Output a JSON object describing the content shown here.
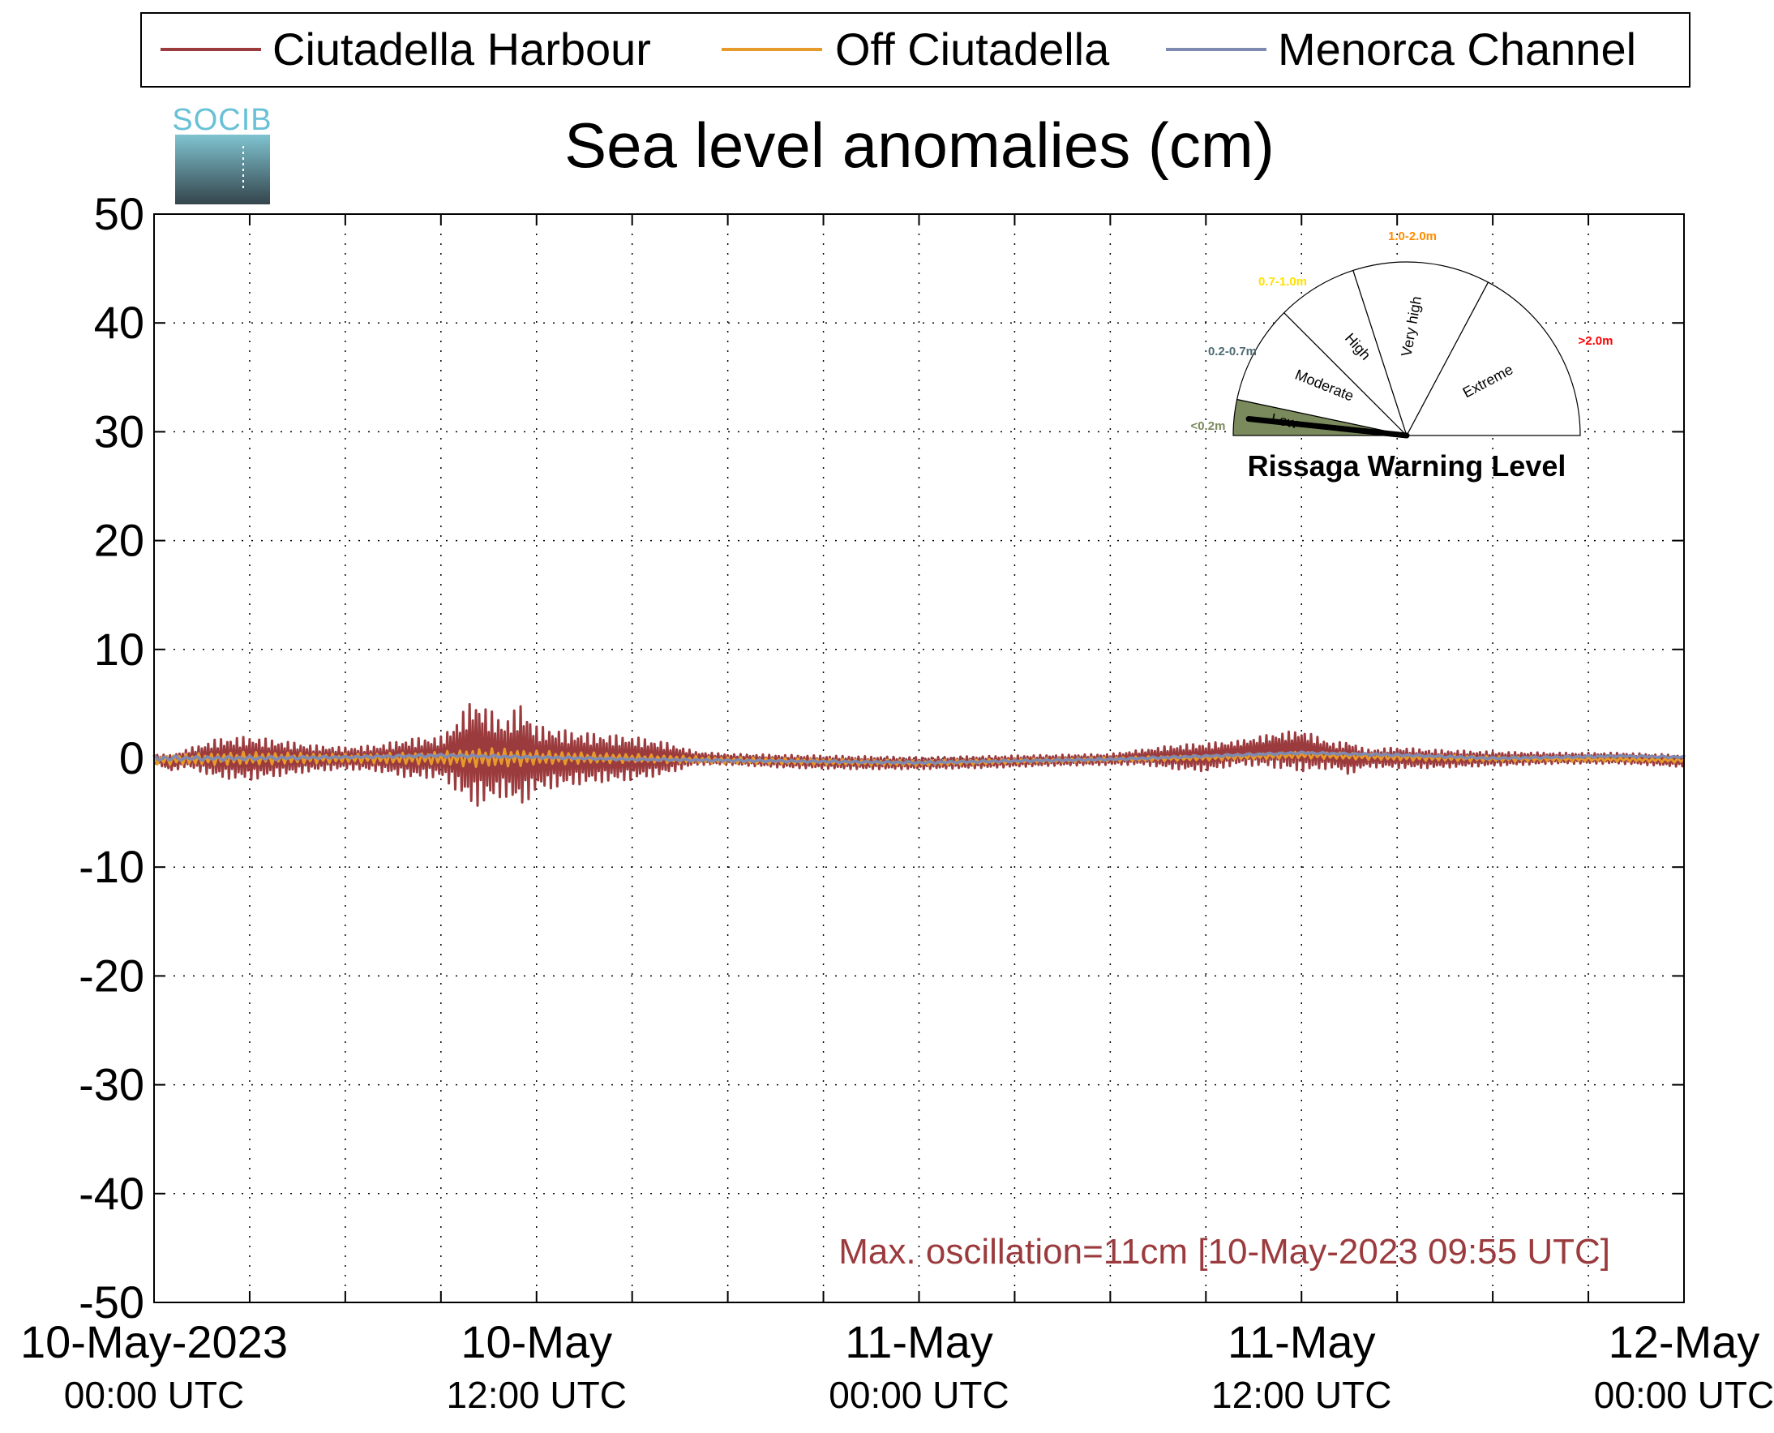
{
  "legend": {
    "items": [
      {
        "label": "Ciutadella Harbour",
        "color": "#9b3b3e"
      },
      {
        "label": "Off Ciutadella",
        "color": "#e69a2b"
      },
      {
        "label": "Menorca Channel",
        "color": "#7f8ab2"
      }
    ]
  },
  "logo": {
    "text": "SOCIB"
  },
  "annotation": {
    "text": "Max. oscillation=11cm [10-May-2023 09:55 UTC]",
    "color": "#9b3b3e"
  },
  "gauge": {
    "title": "Rissaga Warning Level",
    "needle_level": "Low",
    "sectors": [
      {
        "name": "Low",
        "range": "<0.2m",
        "color": "#7b8a5c"
      },
      {
        "name": "Moderate",
        "range": "0.2-0.7m",
        "color": "#4d6b73"
      },
      {
        "name": "High",
        "range": "0.7-1.0m",
        "color": "#ffe100"
      },
      {
        "name": "Very high",
        "range": "1.0-2.0m",
        "color": "#ff8c00"
      },
      {
        "name": "Extreme",
        "range": ">2.0m",
        "color": "#ff0000"
      }
    ]
  },
  "chart_data": {
    "type": "line",
    "title": "Sea level anomalies (cm)",
    "xlabel": "",
    "ylabel": "",
    "ylim": [
      -50,
      50
    ],
    "yticks": [
      50,
      40,
      30,
      20,
      10,
      0,
      -10,
      -20,
      -30,
      -40,
      -50
    ],
    "xlim": [
      "2023-05-10 00:00",
      "2023-05-12 00:00"
    ],
    "xtick_labels": [
      {
        "line1": "10-May-2023",
        "line2": "00:00 UTC"
      },
      {
        "line1": "10-May",
        "line2": "12:00 UTC"
      },
      {
        "line1": "11-May",
        "line2": "00:00 UTC"
      },
      {
        "line1": "11-May",
        "line2": "12:00 UTC"
      },
      {
        "line1": "12-May",
        "line2": "00:00 UTC"
      }
    ],
    "grid": true,
    "legend_position": "top",
    "series": [
      {
        "name": "Ciutadella Harbour",
        "color": "#9b3b3e",
        "envelope": [
          {
            "x": "2023-05-10 00:00",
            "max": 0.4,
            "min": -0.4
          },
          {
            "x": "2023-05-10 00:30",
            "max": 0.3,
            "min": -1.2
          },
          {
            "x": "2023-05-10 01:00",
            "max": 0.8,
            "min": -0.8
          },
          {
            "x": "2023-05-10 02:00",
            "max": 1.8,
            "min": -1.8
          },
          {
            "x": "2023-05-10 03:00",
            "max": 2.0,
            "min": -2.0
          },
          {
            "x": "2023-05-10 04:00",
            "max": 1.6,
            "min": -1.6
          },
          {
            "x": "2023-05-10 05:00",
            "max": 1.2,
            "min": -1.2
          },
          {
            "x": "2023-05-10 06:00",
            "max": 1.0,
            "min": -1.0
          },
          {
            "x": "2023-05-10 07:00",
            "max": 1.2,
            "min": -1.2
          },
          {
            "x": "2023-05-10 08:00",
            "max": 1.8,
            "min": -1.8
          },
          {
            "x": "2023-05-10 09:00",
            "max": 2.0,
            "min": -1.8
          },
          {
            "x": "2023-05-10 09:30",
            "max": 3.5,
            "min": -3.0
          },
          {
            "x": "2023-05-10 10:00",
            "max": 5.5,
            "min": -4.5
          },
          {
            "x": "2023-05-10 10:30",
            "max": 4.5,
            "min": -4.0
          },
          {
            "x": "2023-05-10 11:00",
            "max": 3.5,
            "min": -3.5
          },
          {
            "x": "2023-05-10 11:30",
            "max": 5.0,
            "min": -4.5
          },
          {
            "x": "2023-05-10 12:00",
            "max": 3.0,
            "min": -3.0
          },
          {
            "x": "2023-05-10 13:00",
            "max": 2.5,
            "min": -2.5
          },
          {
            "x": "2023-05-10 14:00",
            "max": 2.2,
            "min": -2.2
          },
          {
            "x": "2023-05-10 15:00",
            "max": 2.0,
            "min": -2.0
          },
          {
            "x": "2023-05-10 16:00",
            "max": 1.5,
            "min": -1.5
          },
          {
            "x": "2023-05-10 17:00",
            "max": 0.6,
            "min": -0.6
          },
          {
            "x": "2023-05-10 18:00",
            "max": 0.4,
            "min": -0.6
          },
          {
            "x": "2023-05-10 20:00",
            "max": 0.3,
            "min": -0.9
          },
          {
            "x": "2023-05-10 22:00",
            "max": 0.2,
            "min": -1.0
          },
          {
            "x": "2023-05-11 00:00",
            "max": 0.1,
            "min": -1.0
          },
          {
            "x": "2023-05-11 02:00",
            "max": 0.2,
            "min": -0.9
          },
          {
            "x": "2023-05-11 04:00",
            "max": 0.3,
            "min": -0.7
          },
          {
            "x": "2023-05-11 06:00",
            "max": 0.4,
            "min": -0.6
          },
          {
            "x": "2023-05-11 07:00",
            "max": 0.8,
            "min": -0.6
          },
          {
            "x": "2023-05-11 08:00",
            "max": 1.2,
            "min": -1.0
          },
          {
            "x": "2023-05-11 09:00",
            "max": 1.4,
            "min": -1.2
          },
          {
            "x": "2023-05-11 10:00",
            "max": 1.6,
            "min": -0.6
          },
          {
            "x": "2023-05-11 11:00",
            "max": 2.2,
            "min": -0.8
          },
          {
            "x": "2023-05-11 12:00",
            "max": 2.6,
            "min": -1.2
          },
          {
            "x": "2023-05-11 13:00",
            "max": 1.4,
            "min": -0.9
          },
          {
            "x": "2023-05-11 13:30",
            "max": 1.6,
            "min": -1.5
          },
          {
            "x": "2023-05-11 14:00",
            "max": 0.8,
            "min": -0.8
          },
          {
            "x": "2023-05-11 15:00",
            "max": 1.0,
            "min": -0.9
          },
          {
            "x": "2023-05-11 16:00",
            "max": 0.8,
            "min": -0.9
          },
          {
            "x": "2023-05-11 18:00",
            "max": 0.6,
            "min": -0.7
          },
          {
            "x": "2023-05-11 20:00",
            "max": 0.5,
            "min": -0.5
          },
          {
            "x": "2023-05-11 22:00",
            "max": 0.5,
            "min": -0.5
          },
          {
            "x": "2023-05-12 00:00",
            "max": 0.3,
            "min": -0.8
          }
        ]
      },
      {
        "name": "Off Ciutadella",
        "color": "#e69a2b",
        "envelope": [
          {
            "x": "2023-05-10 00:00",
            "max": 0.2,
            "min": -0.6
          },
          {
            "x": "2023-05-10 01:00",
            "max": 0.4,
            "min": -0.6
          },
          {
            "x": "2023-05-10 03:00",
            "max": 0.6,
            "min": -0.6
          },
          {
            "x": "2023-05-10 06:00",
            "max": 0.4,
            "min": -0.4
          },
          {
            "x": "2023-05-10 09:00",
            "max": 0.6,
            "min": -0.6
          },
          {
            "x": "2023-05-10 10:00",
            "max": 0.9,
            "min": -0.8
          },
          {
            "x": "2023-05-10 11:00",
            "max": 0.9,
            "min": -0.8
          },
          {
            "x": "2023-05-10 12:00",
            "max": 0.7,
            "min": -0.6
          },
          {
            "x": "2023-05-10 15:00",
            "max": 0.4,
            "min": -0.4
          },
          {
            "x": "2023-05-10 18:00",
            "max": 0.1,
            "min": -0.5
          },
          {
            "x": "2023-05-11 00:00",
            "max": -0.2,
            "min": -0.7
          },
          {
            "x": "2023-05-11 06:00",
            "max": 0.1,
            "min": -0.3
          },
          {
            "x": "2023-05-11 09:00",
            "max": 0.3,
            "min": -0.2
          },
          {
            "x": "2023-05-11 12:00",
            "max": 0.6,
            "min": 0.0
          },
          {
            "x": "2023-05-11 15:00",
            "max": 0.4,
            "min": -0.2
          },
          {
            "x": "2023-05-11 18:00",
            "max": 0.2,
            "min": -0.3
          },
          {
            "x": "2023-05-11 22:00",
            "max": 0.1,
            "min": -0.3
          },
          {
            "x": "2023-05-12 00:00",
            "max": 0.0,
            "min": -0.4
          }
        ]
      },
      {
        "name": "Menorca Channel",
        "color": "#7f8ab2",
        "envelope": [
          {
            "x": "2023-05-10 00:00",
            "max": 0.3,
            "min": -0.3
          },
          {
            "x": "2023-05-10 01:00",
            "max": 0.2,
            "min": -0.2
          },
          {
            "x": "2023-05-10 03:00",
            "max": 0.2,
            "min": -0.2
          },
          {
            "x": "2023-05-10 06:00",
            "max": 0.2,
            "min": 0.0
          },
          {
            "x": "2023-05-10 09:00",
            "max": 0.4,
            "min": 0.1
          },
          {
            "x": "2023-05-10 12:00",
            "max": 0.2,
            "min": 0.0
          },
          {
            "x": "2023-05-10 15:00",
            "max": 0.0,
            "min": -0.2
          },
          {
            "x": "2023-05-10 18:00",
            "max": -0.1,
            "min": -0.3
          },
          {
            "x": "2023-05-11 00:00",
            "max": -0.3,
            "min": -0.5
          },
          {
            "x": "2023-05-11 06:00",
            "max": 0.0,
            "min": -0.2
          },
          {
            "x": "2023-05-11 09:00",
            "max": 0.3,
            "min": 0.1
          },
          {
            "x": "2023-05-11 12:00",
            "max": 0.6,
            "min": 0.4
          },
          {
            "x": "2023-05-11 15:00",
            "max": 0.4,
            "min": 0.2
          },
          {
            "x": "2023-05-11 18:00",
            "max": 0.1,
            "min": -0.1
          },
          {
            "x": "2023-05-11 22:00",
            "max": 0.3,
            "min": 0.1
          },
          {
            "x": "2023-05-12 00:00",
            "max": 0.2,
            "min": 0.0
          }
        ]
      }
    ]
  }
}
